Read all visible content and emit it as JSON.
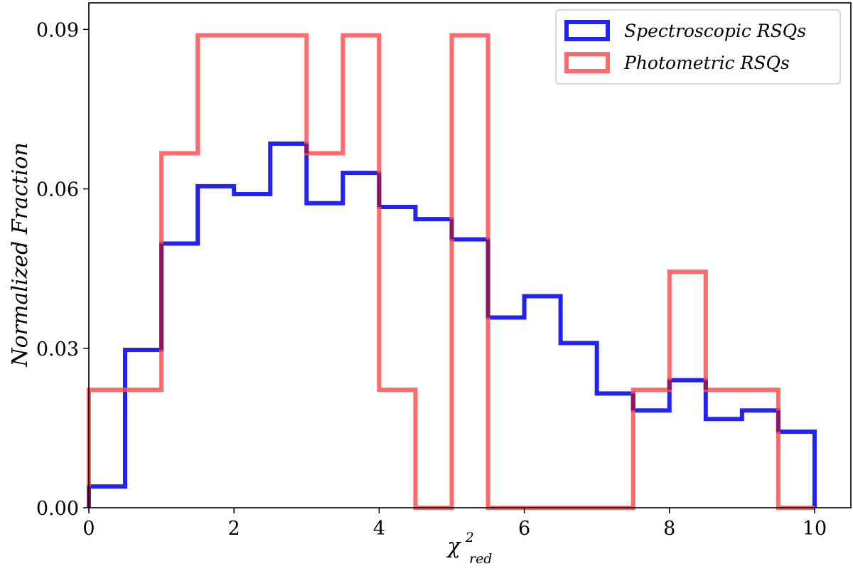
{
  "chart_data": {
    "type": "histogram",
    "title": "",
    "xlabel_base": "χ",
    "xlabel_sup": "2",
    "xlabel_sub": "red",
    "ylabel": "Normalized Fraction",
    "xlim": [
      0,
      10.5
    ],
    "ylim": [
      0,
      0.095
    ],
    "xticks": [
      0,
      2,
      4,
      6,
      8,
      10
    ],
    "xtick_labels": [
      "0",
      "2",
      "4",
      "6",
      "8",
      "10"
    ],
    "yticks": [
      0,
      0.03,
      0.06,
      0.09
    ],
    "ytick_labels": [
      "0.00",
      "0.03",
      "0.06",
      "0.09"
    ],
    "grid": false,
    "legend_position": "top-right",
    "bin_edges": [
      0,
      0.5,
      1,
      1.5,
      2,
      2.5,
      3,
      3.5,
      4,
      4.5,
      5,
      5.5,
      6,
      6.5,
      7,
      7.5,
      8,
      8.5,
      9,
      9.5,
      10
    ],
    "series": [
      {
        "name": "Spectroscopic RSQs",
        "color": "#1010f0",
        "values": [
          0.004,
          0.0297,
          0.0497,
          0.0605,
          0.059,
          0.0685,
          0.0573,
          0.063,
          0.0566,
          0.0543,
          0.0505,
          0.0358,
          0.0398,
          0.031,
          0.0215,
          0.0183,
          0.024,
          0.0167,
          0.0183,
          0.0143
        ]
      },
      {
        "name": "Photometric RSQs",
        "color": "#ff5050",
        "values": [
          0.0222,
          0.0222,
          0.0667,
          0.0889,
          0.0889,
          0.0889,
          0.0667,
          0.0889,
          0.0222,
          0.0,
          0.0889,
          0.0,
          0.0,
          0.0,
          0.0,
          0.0222,
          0.0444,
          0.0222,
          0.0222,
          0.0
        ]
      }
    ]
  }
}
